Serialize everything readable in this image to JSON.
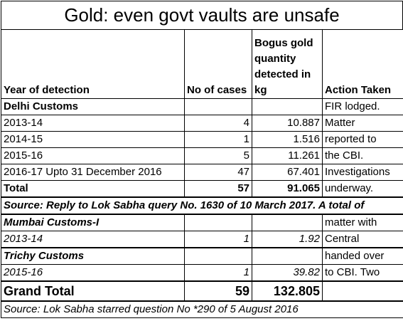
{
  "title": "Gold: even govt vaults are unsafe",
  "headers": {
    "year": "Year of detection",
    "cases": "No of cases",
    "quantity": "Bogus gold quantity detected in kg",
    "action": "Action Taken"
  },
  "delhi": {
    "label": "Delhi Customs",
    "rows": [
      {
        "year": "2013-14",
        "cases": "4",
        "kg": "10.887"
      },
      {
        "year": "2014-15",
        "cases": "1",
        "kg": "1.516"
      },
      {
        "year": "2015-16",
        "cases": "5",
        "kg": "11.261"
      },
      {
        "year": "2016-17 Upto 31 December 2016",
        "cases": "47",
        "kg": "67.401"
      }
    ],
    "total_label": "Total",
    "total_cases": "57",
    "total_kg": "91.065",
    "action_lines": [
      "FIR lodged.",
      "Matter",
      "reported to",
      "the CBI.",
      "Investigations",
      "underway."
    ]
  },
  "source1": "Source:  Reply to Lok Sabha query No. 1630 of 10 March 2017. A total of",
  "mumbai": {
    "label": "Mumbai Customs-I",
    "rows": [
      {
        "year": "2013-14",
        "cases": "1",
        "kg": "1.92"
      }
    ],
    "action_lines": [
      "matter with",
      "Central"
    ]
  },
  "trichy": {
    "label": "Trichy Customs",
    "rows": [
      {
        "year": "2015-16",
        "cases": "1",
        "kg": "39.82"
      }
    ],
    "action_lines": [
      "handed over",
      "to CBI. Two"
    ]
  },
  "grand": {
    "label": "Grand Total",
    "cases": "59",
    "kg": "132.805"
  },
  "source2": "Source: Lok Sabha starred question No *290 of 5 August 2016"
}
